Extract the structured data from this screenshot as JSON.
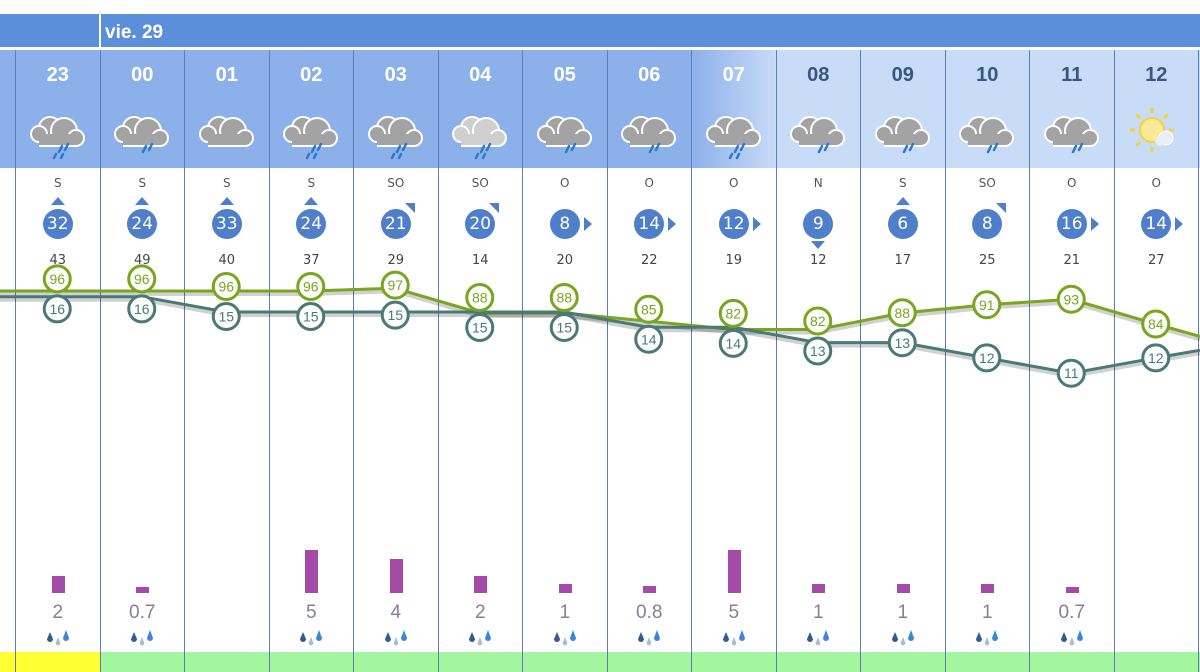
{
  "day_label": "vie. 29",
  "colors": {
    "humidity": "#7aa51e",
    "temperature": "#4a7a78",
    "precip": "#a44aa8",
    "wind": "#4f7fc8",
    "strip_yellow": "#ffff33",
    "strip_green": "#a3f59f"
  },
  "columns": [
    {
      "hour": "23",
      "icon": "rain-heavy",
      "dir": "S",
      "wind": "32",
      "gust": "43",
      "temp": 16,
      "humidity": 96,
      "precip": 2,
      "precip_label": "2",
      "strip": "yellow",
      "shade": "dark"
    },
    {
      "hour": "00",
      "icon": "rain",
      "dir": "S",
      "wind": "24",
      "gust": "49",
      "temp": 16,
      "humidity": 96,
      "precip": 0.7,
      "precip_label": "0.7",
      "strip": "green",
      "shade": "dark"
    },
    {
      "hour": "01",
      "icon": "cloudy",
      "dir": "S",
      "wind": "33",
      "gust": "40",
      "temp": 15,
      "humidity": 96,
      "precip": 0,
      "precip_label": "",
      "strip": "green",
      "shade": "dark"
    },
    {
      "hour": "02",
      "icon": "rain-heavy",
      "dir": "S",
      "wind": "24",
      "gust": "37",
      "temp": 15,
      "humidity": 96,
      "precip": 5,
      "precip_label": "5",
      "strip": "green",
      "shade": "dark"
    },
    {
      "hour": "03",
      "icon": "rain-heavy",
      "dir": "SO",
      "wind": "21",
      "gust": "29",
      "temp": 15,
      "humidity": 97,
      "precip": 4,
      "precip_label": "4",
      "strip": "green",
      "shade": "dark"
    },
    {
      "hour": "04",
      "icon": "rain-heavy-light",
      "dir": "SO",
      "wind": "20",
      "gust": "14",
      "temp": 15,
      "humidity": 88,
      "precip": 2,
      "precip_label": "2",
      "strip": "green",
      "shade": "dark"
    },
    {
      "hour": "05",
      "icon": "rain",
      "dir": "O",
      "wind": "8",
      "gust": "20",
      "temp": 15,
      "humidity": 88,
      "precip": 1,
      "precip_label": "1",
      "strip": "green",
      "shade": "dark"
    },
    {
      "hour": "06",
      "icon": "rain",
      "dir": "O",
      "wind": "14",
      "gust": "22",
      "temp": 14,
      "humidity": 85,
      "precip": 0.8,
      "precip_label": "0.8",
      "strip": "green",
      "shade": "dark"
    },
    {
      "hour": "07",
      "icon": "rain-heavy",
      "dir": "O",
      "wind": "12",
      "gust": "19",
      "temp": 14,
      "humidity": 82,
      "precip": 5,
      "precip_label": "5",
      "strip": "green",
      "shade": "mid"
    },
    {
      "hour": "08",
      "icon": "rain",
      "dir": "N",
      "wind": "9",
      "gust": "12",
      "temp": 13,
      "humidity": 82,
      "precip": 1,
      "precip_label": "1",
      "strip": "green",
      "shade": "light"
    },
    {
      "hour": "09",
      "icon": "rain",
      "dir": "S",
      "wind": "6",
      "gust": "17",
      "temp": 13,
      "humidity": 88,
      "precip": 1,
      "precip_label": "1",
      "strip": "green",
      "shade": "light"
    },
    {
      "hour": "10",
      "icon": "rain",
      "dir": "SO",
      "wind": "8",
      "gust": "25",
      "temp": 12,
      "humidity": 91,
      "precip": 1,
      "precip_label": "1",
      "strip": "green",
      "shade": "light"
    },
    {
      "hour": "11",
      "icon": "rain",
      "dir": "O",
      "wind": "16",
      "gust": "21",
      "temp": 11,
      "humidity": 93,
      "precip": 0.7,
      "precip_label": "0.7",
      "strip": "green",
      "shade": "light"
    },
    {
      "hour": "12",
      "icon": "sun-cloud",
      "dir": "O",
      "wind": "14",
      "gust": "27",
      "temp": 12,
      "humidity": 84,
      "precip": 0,
      "precip_label": "",
      "strip": "green",
      "shade": "light"
    }
  ]
}
